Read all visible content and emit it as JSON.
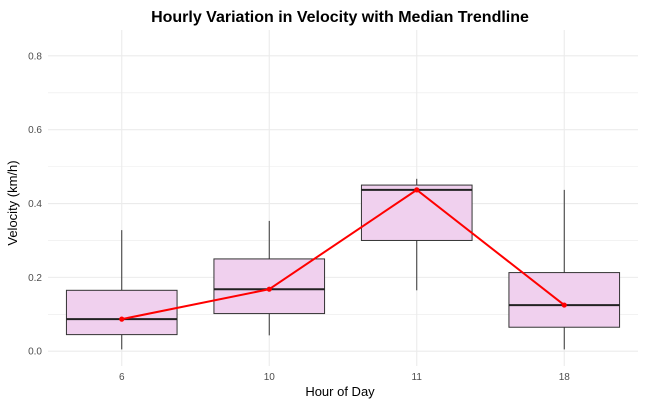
{
  "chart_data": {
    "type": "box",
    "title": "Hourly Variation in Velocity with Median Trendline",
    "xlabel": "Hour of Day",
    "ylabel": "Velocity (km/h)",
    "categories": [
      "6",
      "10",
      "11",
      "18"
    ],
    "ylim": [
      -0.04,
      0.87
    ],
    "y_ticks": [
      0.0,
      0.2,
      0.4,
      0.6,
      0.8
    ],
    "y_tick_labels": [
      "0.0",
      "0.2",
      "0.4",
      "0.6",
      "0.8"
    ],
    "grid": true,
    "boxes": [
      {
        "category": "6",
        "min": 0.005,
        "q1": 0.045,
        "median": 0.087,
        "q3": 0.165,
        "max": 0.328
      },
      {
        "category": "10",
        "min": 0.043,
        "q1": 0.102,
        "median": 0.168,
        "q3": 0.25,
        "max": 0.353
      },
      {
        "category": "11",
        "min": 0.165,
        "q1": 0.3,
        "median": 0.437,
        "q3": 0.45,
        "max": 0.467
      },
      {
        "category": "18",
        "min": 0.005,
        "q1": 0.065,
        "median": 0.125,
        "q3": 0.213,
        "max": 0.437
      }
    ],
    "trendline": {
      "type": "line",
      "values": [
        0.087,
        0.168,
        0.437,
        0.125
      ]
    },
    "colors": {
      "box_fill": "#f0d0ee",
      "box_stroke": "#333333",
      "median_line": "#222222",
      "trendline": "#ff0000",
      "grid": "#ebebeb"
    }
  }
}
